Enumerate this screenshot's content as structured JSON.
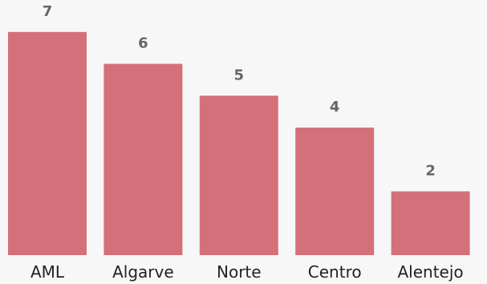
{
  "chart_data": {
    "type": "bar",
    "categories": [
      "AML",
      "Algarve",
      "Norte",
      "Centro",
      "Alentejo"
    ],
    "values": [
      7,
      6,
      5,
      4,
      2
    ],
    "title": "",
    "xlabel": "",
    "ylabel": "",
    "ylim": [
      0,
      7.7
    ],
    "grid": false,
    "legend": "none",
    "data_labels": true,
    "colors": {
      "bar": "#d4707a",
      "background": "#f7f7f7",
      "data_label": "#666666",
      "tick_label": "#222222"
    }
  }
}
